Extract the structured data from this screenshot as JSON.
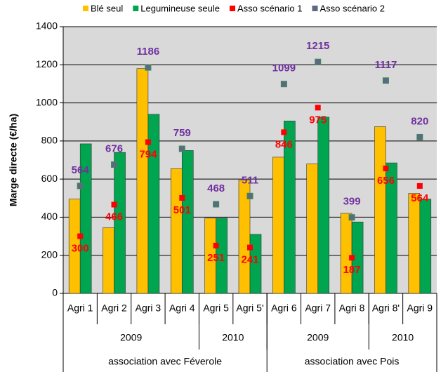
{
  "chart_data": {
    "type": "bar",
    "y_label": "Marge directe (€/ha)",
    "categories": [
      "Agri 1",
      "Agri 2",
      "Agri 3",
      "Agri 4",
      "Agri 5",
      "Agri 5'",
      "Agri 6",
      "Agri 7",
      "Agri 8",
      "Agri 8'",
      "Agri 9"
    ],
    "category_groups": [
      {
        "label": "2009",
        "count": 4
      },
      {
        "label": "2010",
        "count": 2
      },
      {
        "label": "2009",
        "count": 3
      },
      {
        "label": "2010",
        "count": 2
      }
    ],
    "outer_groups": [
      {
        "label": "association avec Féverole",
        "count": 6
      },
      {
        "label": "association avec Pois",
        "count": 5
      }
    ],
    "series": [
      {
        "name": "Blé seul",
        "color": "#ffc000",
        "kind": "bar",
        "values": [
          495,
          345,
          1180,
          655,
          395,
          595,
          715,
          680,
          420,
          875,
          525
        ]
      },
      {
        "name": "Legumineuse seule",
        "color": "#00a550",
        "kind": "bar",
        "values": [
          785,
          740,
          940,
          750,
          395,
          310,
          905,
          925,
          375,
          685,
          495
        ]
      },
      {
        "name": "Asso scénario 1",
        "color": "#ff0000",
        "label_color": "#ff0000",
        "kind": "point",
        "label_side": "below",
        "values": [
          300,
          466,
          794,
          501,
          251,
          241,
          846,
          975,
          187,
          656,
          564
        ]
      },
      {
        "name": "Asso scénario 2",
        "color": "#5b6a82",
        "label_color": "#7030a0",
        "kind": "point",
        "label_side": "above",
        "values": [
          564,
          676,
          1186,
          759,
          468,
          511,
          1099,
          1215,
          399,
          1117,
          820
        ]
      }
    ],
    "ylim": [
      0,
      1400
    ],
    "yticks": [
      0,
      200,
      400,
      600,
      800,
      1000,
      1200,
      1400
    ],
    "grid": true
  }
}
